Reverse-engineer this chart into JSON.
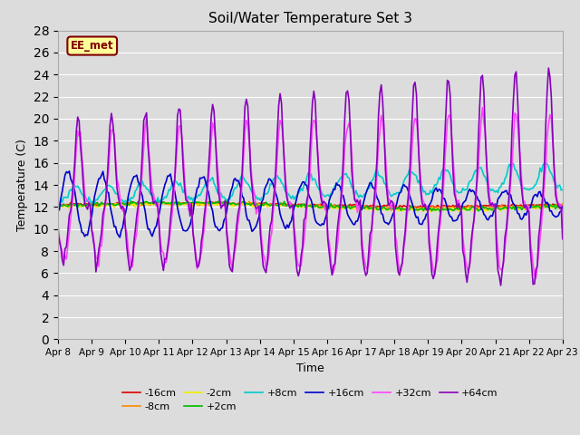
{
  "title": "Soil/Water Temperature Set 3",
  "xlabel": "Time",
  "ylabel": "Temperature (C)",
  "ylim": [
    0,
    28
  ],
  "yticks": [
    0,
    2,
    4,
    6,
    8,
    10,
    12,
    14,
    16,
    18,
    20,
    22,
    24,
    26,
    28
  ],
  "background_color": "#dcdcdc",
  "plot_bg_color": "#dcdcdc",
  "annotation_text": "EE_met",
  "annotation_bg": "#ffff99",
  "annotation_border": "#800000",
  "series_order": [
    "-16cm",
    "-8cm",
    "-2cm",
    "+2cm",
    "+8cm",
    "+16cm",
    "+32cm",
    "+64cm"
  ],
  "series": {
    "-16cm": {
      "color": "#dd0000",
      "lw": 1.2
    },
    "-8cm": {
      "color": "#ff8800",
      "lw": 1.2
    },
    "-2cm": {
      "color": "#eeee00",
      "lw": 1.2
    },
    "+2cm": {
      "color": "#00bb00",
      "lw": 1.2
    },
    "+8cm": {
      "color": "#00cccc",
      "lw": 1.2
    },
    "+16cm": {
      "color": "#0000cc",
      "lw": 1.2
    },
    "+32cm": {
      "color": "#ff44ff",
      "lw": 1.2
    },
    "+64cm": {
      "color": "#8800bb",
      "lw": 1.2
    }
  },
  "x_labels": [
    "Apr 8",
    "Apr 9",
    "Apr 10",
    "Apr 11",
    "Apr 12",
    "Apr 13",
    "Apr 14",
    "Apr 15",
    "Apr 16",
    "Apr 17",
    "Apr 18",
    "Apr 19",
    "Apr 20",
    "Apr 21",
    "Apr 22",
    "Apr 23"
  ],
  "figsize": [
    6.4,
    4.8
  ],
  "dpi": 100
}
